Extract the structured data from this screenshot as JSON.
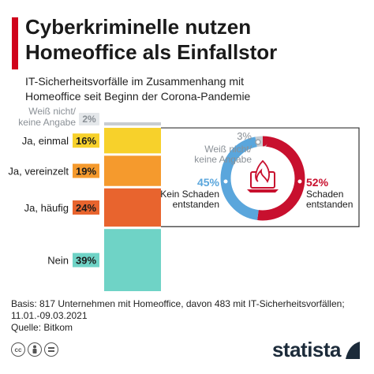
{
  "header": {
    "title_line1": "Cyberkriminelle nutzen",
    "title_line2": "Homeoffice als Einfallstor",
    "subtitle_line1": "IT-Sicherheitsvorfälle im Zusammenhang mit",
    "subtitle_line2": "Homeoffice seit Beginn der Corona-Pandemie"
  },
  "colors": {
    "accent": "#d0021b",
    "einmal": "#f7d12b",
    "vereinzelt": "#f59a2d",
    "haeufig": "#e8642e",
    "nein": "#6fd3c6",
    "weiss_nicht": "#c8cdd2",
    "schaden": "#c8102e",
    "kein_schaden": "#5aa6dc",
    "donut_unknown": "#c8cdd2"
  },
  "chart_data": [
    {
      "type": "bar",
      "orientation": "stacked-vertical",
      "categories": [
        "Weiß nicht/ keine Angabe",
        "Ja, einmal",
        "Ja, vereinzelt",
        "Ja, häufig",
        "Nein"
      ],
      "category_lines": [
        [
          "Weiß nicht/",
          "keine Angabe"
        ],
        [
          "Ja, einmal"
        ],
        [
          "Ja, vereinzelt"
        ],
        [
          "Ja, häufig"
        ],
        [
          "Nein"
        ]
      ],
      "values": [
        2,
        16,
        19,
        24,
        39
      ],
      "labels": [
        "2%",
        "16%",
        "19%",
        "24%",
        "39%"
      ],
      "unit": "%"
    },
    {
      "type": "pie",
      "variant": "donut",
      "categories": [
        "Schaden entstanden",
        "Kein Schaden entstanden",
        "Weiß nicht/ keine Angabe"
      ],
      "category_lines": [
        [
          "Schaden",
          "entstanden"
        ],
        [
          "Kein Schaden",
          "entstanden"
        ],
        [
          "Weiß nicht/",
          "keine Angabe"
        ]
      ],
      "values": [
        52,
        45,
        3
      ],
      "labels": [
        "52%",
        "45%",
        "3%"
      ],
      "unit": "%"
    }
  ],
  "footer": {
    "line1": "Basis: 817 Unternehmen mit Homeoffice, davon 483 mit IT-Sicherheitsvorfällen;",
    "line2": "11.01.-09.03.2021",
    "line3": "Quelle: Bitkom"
  },
  "license_icons": [
    "cc-icon",
    "by-icon",
    "equals-icon"
  ],
  "brand": {
    "name": "statista"
  }
}
